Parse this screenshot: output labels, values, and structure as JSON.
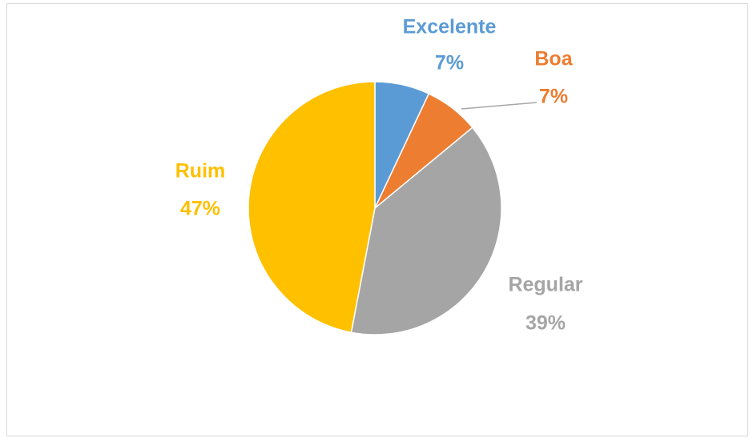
{
  "chart_data": {
    "type": "pie",
    "categories": [
      "Excelente",
      "Boa",
      "Regular",
      "Ruim"
    ],
    "values": [
      7,
      7,
      39,
      47
    ],
    "value_labels": [
      "7%",
      "7%",
      "39%",
      "47%"
    ],
    "colors": [
      "#5b9bd5",
      "#ed7d31",
      "#a5a5a5",
      "#ffc000"
    ]
  }
}
